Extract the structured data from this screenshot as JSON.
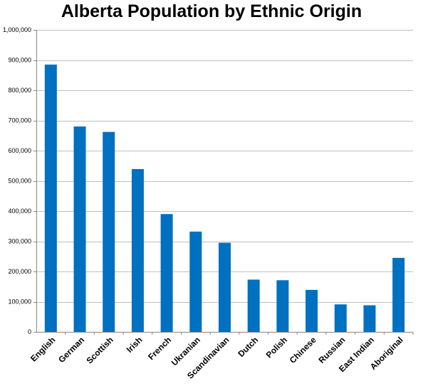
{
  "chart_data": {
    "type": "bar",
    "title": "Alberta Population by Ethnic Origin",
    "xlabel": "",
    "ylabel": "",
    "categories": [
      "English",
      "German",
      "Scottish",
      "Irish",
      "French",
      "Ukranian",
      "Scandinavian",
      "Dutch",
      "Polish",
      "Chinese",
      "Russian",
      "East Indian",
      "Aboriginal"
    ],
    "values": [
      885000,
      680000,
      662000,
      539000,
      390000,
      332000,
      295000,
      173000,
      171000,
      139000,
      91000,
      88000,
      245000
    ],
    "ylim": [
      0,
      1000000
    ],
    "yticks": [
      0,
      100000,
      200000,
      300000,
      400000,
      500000,
      600000,
      700000,
      800000,
      900000,
      1000000
    ],
    "ytick_labels": [
      "0",
      "100,000",
      "200,000",
      "300,000",
      "400,000",
      "500,000",
      "600,000",
      "700,000",
      "800,000",
      "900,000",
      "1,000,000"
    ],
    "grid": true,
    "legend": "none",
    "bar_color": "#0070C0",
    "grid_color": "#bfbfbf",
    "axis_color": "#868686"
  }
}
